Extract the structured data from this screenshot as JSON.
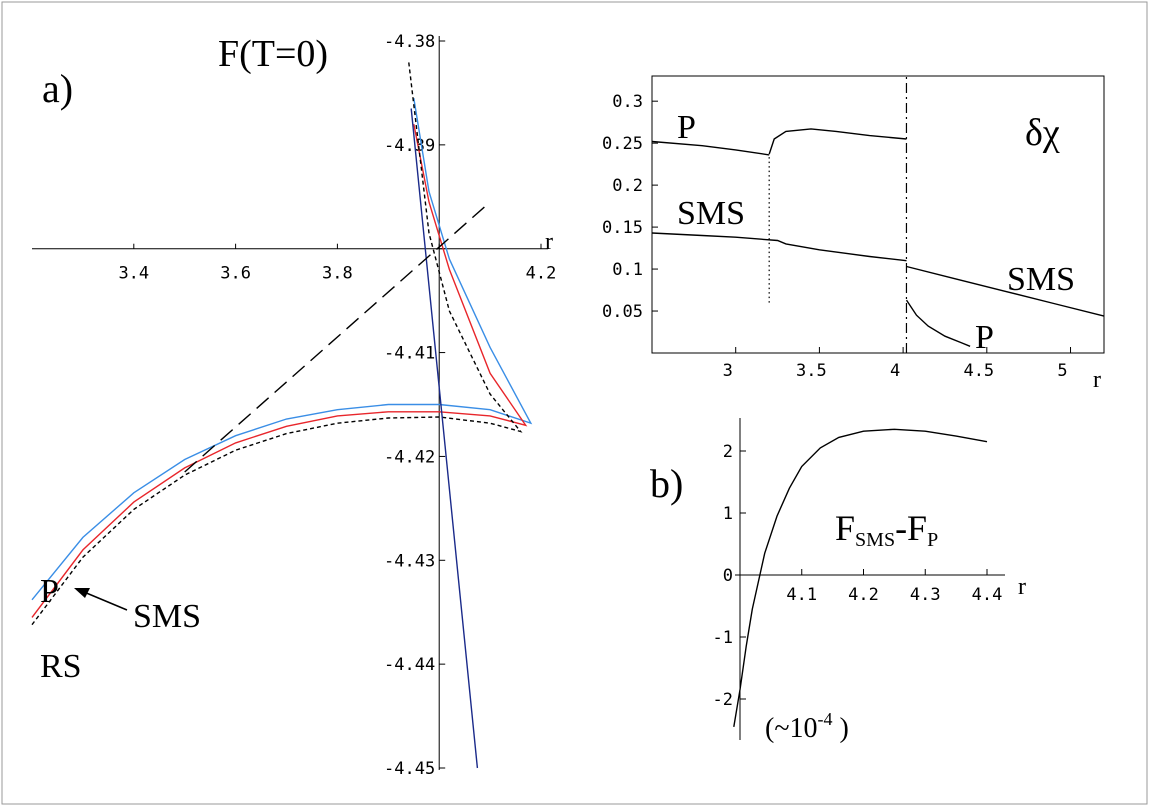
{
  "colors": {
    "blue": "#3a8ee6",
    "red": "#e8262b",
    "black": "#000000",
    "navy": "#1a2a8a",
    "frame": "#999999"
  },
  "labels": {
    "panel_a": "a)",
    "panel_b": "b)",
    "title_a": "F(T=0)",
    "curve_P": "P",
    "curve_SMS": "SMS",
    "curve_RS": "RS"
  },
  "chart_data": [
    {
      "type": "line",
      "id": "panel-a",
      "title": "F(T=0)",
      "xlabel": "r",
      "ylabel": "",
      "xlim": [
        3.2,
        4.25
      ],
      "ylim": [
        -4.45,
        -4.38
      ],
      "x_ticks": [
        3.4,
        3.6,
        3.8,
        4.0,
        4.2
      ],
      "x_tick_labels": [
        "3.4",
        "3.6",
        "3.8",
        "",
        "4.2"
      ],
      "y_ticks": [
        -4.38,
        -4.39,
        -4.4,
        -4.41,
        -4.42,
        -4.43,
        -4.44,
        -4.45
      ],
      "y_tick_labels": [
        "-4.38",
        "-4.39",
        "",
        "-4.41",
        "-4.42",
        "-4.43",
        "-4.44",
        "-4.45"
      ],
      "series": [
        {
          "name": "P",
          "color": "#3a8ee6",
          "style": "solid",
          "points": [
            [
              3.2,
              -4.4338
            ],
            [
              3.3,
              -4.4278
            ],
            [
              3.4,
              -4.4235
            ],
            [
              3.5,
              -4.4203
            ],
            [
              3.6,
              -4.418
            ],
            [
              3.7,
              -4.4164
            ],
            [
              3.8,
              -4.4155
            ],
            [
              3.9,
              -4.415
            ],
            [
              4.0,
              -4.415
            ],
            [
              4.1,
              -4.4155
            ],
            [
              4.18,
              -4.4168
            ],
            [
              4.1,
              -4.4095
            ],
            [
              4.02,
              -4.401
            ],
            [
              3.98,
              -4.3945
            ],
            [
              3.95,
              -4.3855
            ]
          ]
        },
        {
          "name": "SMS",
          "color": "#e8262b",
          "style": "solid",
          "points": [
            [
              3.2,
              -4.4355
            ],
            [
              3.3,
              -4.429
            ],
            [
              3.4,
              -4.4244
            ],
            [
              3.5,
              -4.4211
            ],
            [
              3.6,
              -4.4187
            ],
            [
              3.7,
              -4.4171
            ],
            [
              3.8,
              -4.4161
            ],
            [
              3.9,
              -4.4157
            ],
            [
              4.0,
              -4.4157
            ],
            [
              4.1,
              -4.4161
            ],
            [
              4.17,
              -4.417
            ],
            [
              4.1,
              -4.412
            ],
            [
              4.02,
              -4.402
            ],
            [
              3.98,
              -4.3955
            ],
            [
              3.95,
              -4.388
            ]
          ]
        },
        {
          "name": "RS",
          "color": "#000000",
          "style": "dashed",
          "points": [
            [
              3.2,
              -4.4362
            ],
            [
              3.3,
              -4.4297
            ],
            [
              3.4,
              -4.4251
            ],
            [
              3.5,
              -4.4218
            ],
            [
              3.6,
              -4.4194
            ],
            [
              3.7,
              -4.4178
            ],
            [
              3.8,
              -4.4168
            ],
            [
              3.9,
              -4.4163
            ],
            [
              4.0,
              -4.4162
            ],
            [
              4.1,
              -4.4168
            ],
            [
              4.16,
              -4.4176
            ],
            [
              4.1,
              -4.414
            ],
            [
              4.02,
              -4.406
            ],
            [
              3.98,
              -4.3985
            ],
            [
              3.94,
              -4.382
            ]
          ]
        },
        {
          "name": "",
          "color": "#1a2a8a",
          "style": "solid",
          "points": [
            [
              3.945,
              -4.3865
            ],
            [
              4.075,
              -4.45
            ]
          ]
        },
        {
          "name": "",
          "color": "#000000",
          "style": "longdash",
          "points": [
            [
              3.5,
              -4.4215
            ],
            [
              4.1,
              -4.3955
            ]
          ]
        }
      ]
    },
    {
      "type": "line",
      "id": "panel-delta-chi",
      "title": "δχ",
      "xlabel": "r",
      "ylabel": "",
      "xlim": [
        2.5,
        5.2
      ],
      "ylim": [
        0.0,
        0.33
      ],
      "x_ticks": [
        3,
        3.5,
        4,
        4.5,
        5
      ],
      "x_tick_labels": [
        "3",
        "3.5",
        "4",
        "4.5",
        "5"
      ],
      "y_ticks": [
        0.05,
        0.1,
        0.15,
        0.2,
        0.25,
        0.3
      ],
      "y_tick_labels": [
        "0.05",
        "0.1",
        "0.15",
        "0.2",
        "0.25",
        "0.3"
      ],
      "vlines": [
        {
          "x": 3.2,
          "style": "dotted",
          "ymin": 0.06,
          "ymax": 0.235
        },
        {
          "x": 4.02,
          "style": "dashdot",
          "ymin": 0.0,
          "ymax": 0.33
        }
      ],
      "curve_labels": [
        "P",
        "SMS",
        "SMS",
        "P"
      ],
      "series": [
        {
          "name": "P",
          "color": "#000000",
          "points": [
            [
              2.5,
              0.252
            ],
            [
              2.8,
              0.247
            ],
            [
              3.0,
              0.242
            ],
            [
              3.2,
              0.236
            ]
          ]
        },
        {
          "name": "P",
          "color": "#000000",
          "points": [
            [
              3.2,
              0.237
            ],
            [
              3.23,
              0.255
            ],
            [
              3.3,
              0.264
            ],
            [
              3.45,
              0.267
            ],
            [
              3.6,
              0.264
            ],
            [
              3.8,
              0.259
            ],
            [
              4.02,
              0.255
            ]
          ]
        },
        {
          "name": "SMS",
          "color": "#000000",
          "points": [
            [
              2.5,
              0.143
            ],
            [
              2.8,
              0.14
            ],
            [
              3.0,
              0.138
            ],
            [
              3.25,
              0.134
            ],
            [
              3.3,
              0.13
            ],
            [
              3.5,
              0.123
            ],
            [
              3.8,
              0.115
            ],
            [
              4.02,
              0.11
            ]
          ]
        },
        {
          "name": "SMS",
          "color": "#000000",
          "points": [
            [
              4.02,
              0.103
            ],
            [
              4.3,
              0.089
            ],
            [
              4.6,
              0.074
            ],
            [
              4.9,
              0.059
            ],
            [
              5.2,
              0.044
            ]
          ]
        },
        {
          "name": "P",
          "color": "#000000",
          "points": [
            [
              4.02,
              0.063
            ],
            [
              4.08,
              0.045
            ],
            [
              4.15,
              0.032
            ],
            [
              4.25,
              0.02
            ],
            [
              4.35,
              0.012
            ],
            [
              4.4,
              0.008
            ]
          ]
        }
      ]
    },
    {
      "type": "line",
      "id": "panel-b",
      "title": "",
      "xlabel": "r",
      "ylabel": "",
      "ylabel_parts": {
        "main1": "F",
        "sub1": "SMS",
        "dash": "-F",
        "sub2": "P"
      },
      "scale_note": {
        "open": "(~10",
        "exp": "-4",
        "close": " )"
      },
      "xlim": [
        4.0,
        4.4
      ],
      "ylim": [
        -2.6,
        2.6
      ],
      "x_ticks": [
        4.1,
        4.2,
        4.3,
        4.4
      ],
      "x_tick_labels": [
        "4.1",
        "4.2",
        "4.3",
        "4.4"
      ],
      "y_ticks": [
        -2,
        -1,
        0,
        1,
        2
      ],
      "y_tick_labels": [
        "-2",
        "-1",
        "0",
        "1",
        "2"
      ],
      "series": [
        {
          "name": "",
          "color": "#000000",
          "points": [
            [
              3.99,
              -2.45
            ],
            [
              4.0,
              -1.85
            ],
            [
              4.01,
              -1.15
            ],
            [
              4.02,
              -0.55
            ],
            [
              4.04,
              0.35
            ],
            [
              4.06,
              0.95
            ],
            [
              4.08,
              1.4
            ],
            [
              4.1,
              1.75
            ],
            [
              4.13,
              2.05
            ],
            [
              4.16,
              2.22
            ],
            [
              4.2,
              2.32
            ],
            [
              4.25,
              2.35
            ],
            [
              4.3,
              2.32
            ],
            [
              4.35,
              2.24
            ],
            [
              4.4,
              2.15
            ]
          ]
        }
      ]
    }
  ]
}
